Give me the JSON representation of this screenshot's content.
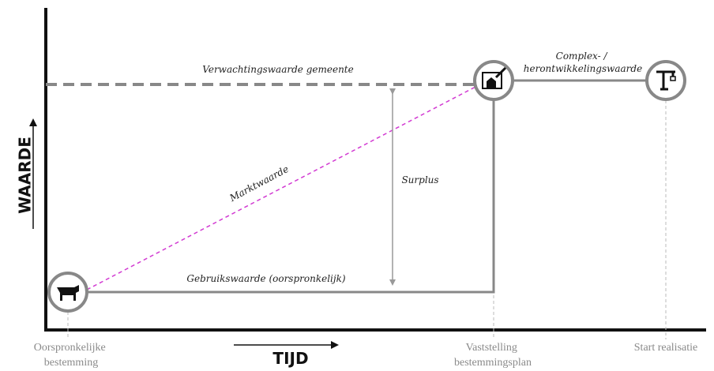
{
  "axes": {
    "y_label": "WAARDE",
    "x_label": "TIJD"
  },
  "milestones": [
    {
      "lines": [
        "Oorspronkelijke",
        "bestemming"
      ]
    },
    {
      "lines": [
        "Vaststelling",
        "bestemmingsplan"
      ]
    },
    {
      "lines": [
        "Start realisatie"
      ]
    }
  ],
  "annotations": {
    "expected": "Verwachtingswaarde gemeente",
    "complex": [
      "Complex- /",
      "herontwikkelingswaarde"
    ],
    "market": "Marktwaarde",
    "surplus": "Surplus",
    "use": "Gebruikswaarde (oorspronkelijk)"
  }
}
